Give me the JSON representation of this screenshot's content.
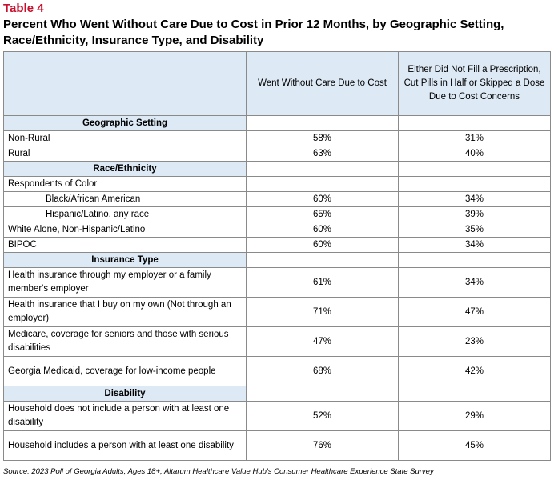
{
  "table_label": "Table 4",
  "title": "Percent Who Went Without Care Due to Cost in Prior 12 Months, by Geographic Setting, Race/Ethnicity, Insurance Type, and Disability",
  "headers": {
    "col1": "",
    "col2": "Went Without Care Due to Cost",
    "col3": "Either Did Not Fill a Prescription, Cut Pills in Half or Skipped a Dose Due to Cost Concerns"
  },
  "sections": {
    "geo": "Geographic Setting",
    "race": "Race/Ethnicity",
    "ins": "Insurance Type",
    "dis": "Disability"
  },
  "rows": {
    "non_rural": {
      "label": "Non-Rural",
      "v1": "58%",
      "v2": "31%"
    },
    "rural": {
      "label": "Rural",
      "v1": "63%",
      "v2": "40%"
    },
    "roc": {
      "label": "Respondents of Color"
    },
    "black": {
      "label": "Black/African American",
      "v1": "60%",
      "v2": "34%"
    },
    "hispanic": {
      "label": "Hispanic/Latino, any race",
      "v1": "65%",
      "v2": "39%"
    },
    "white": {
      "label": "White Alone, Non-Hispanic/Latino",
      "v1": "60%",
      "v2": "35%"
    },
    "bipoc": {
      "label": "BIPOC",
      "v1": "60%",
      "v2": "34%"
    },
    "employer": {
      "label": "Health insurance through my employer or a family member's employer",
      "v1": "61%",
      "v2": "34%"
    },
    "own": {
      "label": "Health insurance that I buy on my own (Not through an employer)",
      "v1": "71%",
      "v2": "47%"
    },
    "medicare": {
      "label": "Medicare, coverage for seniors and those with serious disabilities",
      "v1": "47%",
      "v2": "23%"
    },
    "medicaid": {
      "label": "Georgia Medicaid, coverage for low-income people",
      "v1": "68%",
      "v2": "42%"
    },
    "no_dis": {
      "label": "Household does not include a person with at least one disability",
      "v1": "52%",
      "v2": "29%"
    },
    "dis": {
      "label": "Household includes a person with at least one disability",
      "v1": "76%",
      "v2": "45%"
    }
  },
  "source": "Source: 2023 Poll of Georgia Adults, Ages 18+, Altarum Healthcare Value Hub's Consumer Healthcare Experience State Survey"
}
